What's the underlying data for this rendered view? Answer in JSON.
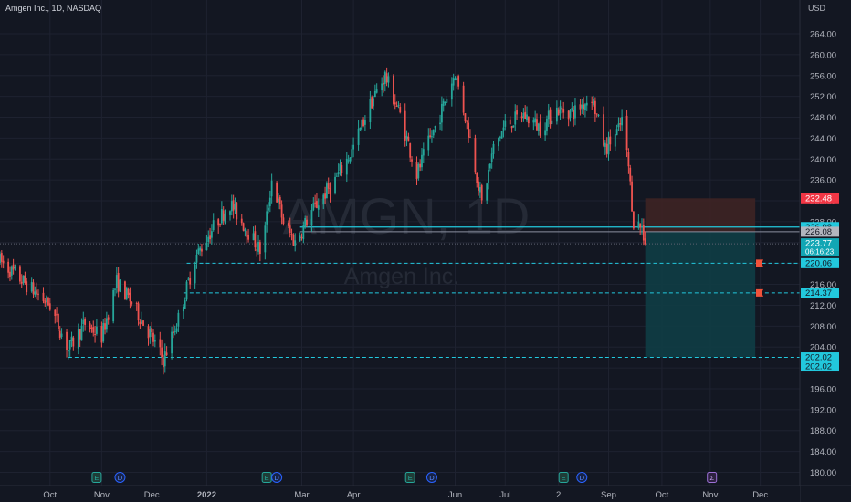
{
  "header": {
    "title": "Amgen Inc., 1D, NASDAQ",
    "currency": "USD"
  },
  "watermark": {
    "symbol": "AMGN, 1D",
    "name": "Amgen Inc."
  },
  "colors": {
    "background": "#131722",
    "grid": "#1e2230",
    "axis_text": "#b2b5be",
    "up": "#26a69a",
    "down": "#ef5350",
    "line": "#2962ff",
    "target_zone": "#0f3d45",
    "stop_zone": "#3e2424",
    "level": "#22c8dd",
    "last": "#12a6b4"
  },
  "chart_data": {
    "type": "candlestick",
    "y_unit": "USD",
    "ylim": [
      177.5,
      267
    ],
    "y_ticks": [
      180,
      184,
      188,
      192,
      196,
      200,
      204,
      208,
      212,
      216,
      220,
      224,
      228,
      232,
      236,
      240,
      244,
      248,
      252,
      256,
      260,
      264
    ],
    "x_ticks": [
      {
        "label": "Oct",
        "date": "2021-10-01"
      },
      {
        "label": "Nov",
        "date": "2021-11-01"
      },
      {
        "label": "Dec",
        "date": "2021-12-01"
      },
      {
        "label": "2022",
        "date": "2022-01-03"
      },
      {
        "label": "Mar",
        "date": "2022-03-01"
      },
      {
        "label": "Apr",
        "date": "2022-04-01"
      },
      {
        "label": "Jun",
        "date": "2022-06-01"
      },
      {
        "label": "Jul",
        "date": "2022-07-01"
      },
      {
        "label": "2",
        "date": "2022-08-02"
      },
      {
        "label": "Sep",
        "date": "2022-09-01"
      },
      {
        "label": "Oct",
        "date": "2022-10-03"
      },
      {
        "label": "Nov",
        "date": "2022-11-01"
      },
      {
        "label": "Dec",
        "date": "2022-12-01"
      }
    ],
    "price_path": [
      [
        "2021-09-01",
        220.5
      ],
      [
        "2021-09-15",
        216.5
      ],
      [
        "2021-10-01",
        212.0
      ],
      [
        "2021-10-12",
        203.5
      ],
      [
        "2021-10-22",
        208.5
      ],
      [
        "2021-11-01",
        206.0
      ],
      [
        "2021-11-10",
        216.5
      ],
      [
        "2021-11-18",
        213.0
      ],
      [
        "2021-11-30",
        206.5
      ],
      [
        "2021-12-08",
        201.5
      ],
      [
        "2021-12-17",
        209.5
      ],
      [
        "2021-12-27",
        221.0
      ],
      [
        "2022-01-07",
        227.0
      ],
      [
        "2022-01-17",
        231.5
      ],
      [
        "2022-01-28",
        226.0
      ],
      [
        "2022-02-05",
        222.0
      ],
      [
        "2022-02-11",
        236.0
      ],
      [
        "2022-02-18",
        228.0
      ],
      [
        "2022-02-25",
        224.0
      ],
      [
        "2022-03-07",
        230.0
      ],
      [
        "2022-03-21",
        236.0
      ],
      [
        "2022-03-31",
        241.5
      ],
      [
        "2022-04-11",
        250.5
      ],
      [
        "2022-04-20",
        256.0
      ],
      [
        "2022-04-29",
        248.5
      ],
      [
        "2022-05-09",
        237.0
      ],
      [
        "2022-05-16",
        243.0
      ],
      [
        "2022-05-23",
        248.5
      ],
      [
        "2022-06-01",
        256.5
      ],
      [
        "2022-06-10",
        244.0
      ],
      [
        "2022-06-17",
        231.5
      ],
      [
        "2022-06-24",
        242.0
      ],
      [
        "2022-07-01",
        246.5
      ],
      [
        "2022-07-12",
        248.5
      ],
      [
        "2022-07-22",
        246.0
      ],
      [
        "2022-08-01",
        249.5
      ],
      [
        "2022-08-11",
        249.0
      ],
      [
        "2022-08-22",
        252.0
      ],
      [
        "2022-08-30",
        242.0
      ],
      [
        "2022-09-07",
        245.5
      ],
      [
        "2022-09-09",
        247.5
      ],
      [
        "2022-09-13",
        238.5
      ],
      [
        "2022-09-16",
        228.0
      ],
      [
        "2022-09-21",
        227.0
      ],
      [
        "2022-09-23",
        223.8
      ]
    ],
    "annotations": [
      {
        "label": "232.48",
        "type": "stop-loss",
        "value": 232.48
      },
      {
        "label": "226.98",
        "type": "level",
        "value": 226.98
      },
      {
        "label": "226.08",
        "type": "entry",
        "value": 226.08
      },
      {
        "label": "223.77",
        "type": "last-price",
        "value": 223.77,
        "countdown": "06:16:23"
      },
      {
        "label": "220.06",
        "type": "target",
        "value": 220.06
      },
      {
        "label": "214.37",
        "type": "target",
        "value": 214.37
      },
      {
        "label": "202.02",
        "type": "target",
        "value": 202.02
      },
      {
        "label": "202.02",
        "type": "target-2",
        "value": 202.02
      }
    ],
    "position": {
      "entry": 226.08,
      "stop": 232.48,
      "target": 202.02,
      "start": "2022-09-23",
      "end": "2022-11-28"
    },
    "event_markers": [
      {
        "symbol": "E",
        "date": "2021-10-29"
      },
      {
        "symbol": "D",
        "date": "2021-11-12"
      },
      {
        "symbol": "E",
        "date": "2022-02-08"
      },
      {
        "symbol": "D",
        "date": "2022-02-14"
      },
      {
        "symbol": "E",
        "date": "2022-05-05"
      },
      {
        "symbol": "D",
        "date": "2022-05-18"
      },
      {
        "symbol": "E",
        "date": "2022-08-05"
      },
      {
        "symbol": "D",
        "date": "2022-08-16"
      },
      {
        "symbol": "Σ",
        "date": "2022-11-02"
      }
    ]
  }
}
